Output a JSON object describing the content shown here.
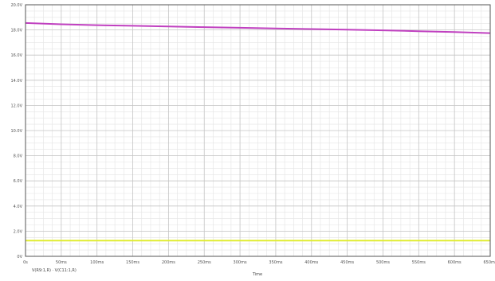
{
  "chart_data": {
    "type": "line",
    "title": "",
    "xlabel": "Time",
    "ylabel": "",
    "x_ticks": [
      "0s",
      "50ms",
      "100ms",
      "150ms",
      "200ms",
      "250ms",
      "300ms",
      "350ms",
      "400ms",
      "450ms",
      "500ms",
      "550ms",
      "600ms",
      "650ms"
    ],
    "xlim": [
      0,
      650
    ],
    "x_unit": "ms",
    "y_ticks": [
      "0V",
      "2.0V",
      "4.0V",
      "6.0V",
      "8.0V",
      "10.0V",
      "12.0V",
      "14.0V",
      "16.0V",
      "18.0V",
      "20.0V"
    ],
    "ylim": [
      0,
      20
    ],
    "grid": true,
    "grid_minor": true,
    "legend_placement": "bottom-left",
    "legend_text": "V(R9:1,R) · V(C11:1,R)",
    "series": [
      {
        "name": "V(R9:1,R)",
        "color": "#c040c0",
        "x": [
          0,
          50,
          100,
          150,
          200,
          250,
          300,
          350,
          400,
          450,
          500,
          550,
          600,
          650
        ],
        "y": [
          18.55,
          18.45,
          18.38,
          18.33,
          18.28,
          18.22,
          18.17,
          18.12,
          18.07,
          18.02,
          17.97,
          17.9,
          17.83,
          17.75
        ]
      },
      {
        "name": "V(C11:1,R)",
        "color": "#e0ec30",
        "x": [
          0,
          50,
          100,
          150,
          200,
          250,
          300,
          350,
          400,
          450,
          500,
          550,
          600,
          650
        ],
        "y": [
          1.25,
          1.25,
          1.25,
          1.25,
          1.25,
          1.25,
          1.25,
          1.25,
          1.25,
          1.25,
          1.25,
          1.25,
          1.25,
          1.25
        ]
      }
    ]
  }
}
